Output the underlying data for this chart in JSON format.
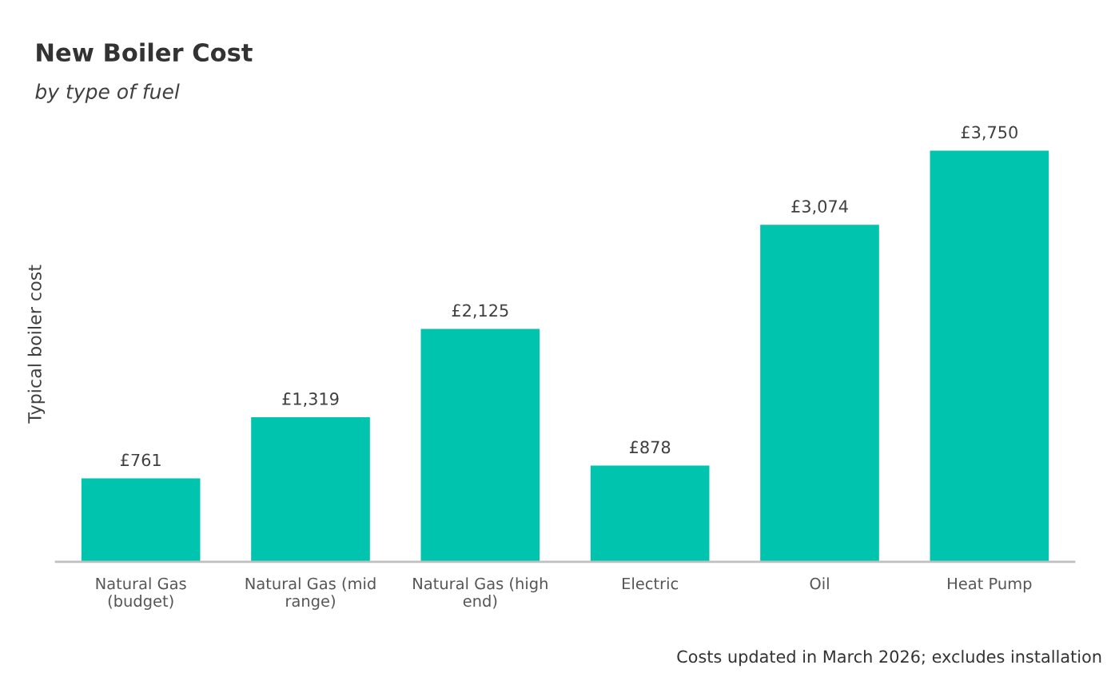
{
  "chart_data": {
    "type": "bar",
    "title": "New Boiler Cost",
    "subtitle": "by type of fuel",
    "ylabel": "Typical boiler cost",
    "categories": [
      "Natural Gas (budget)",
      "Natural Gas (mid range)",
      "Natural Gas (high end)",
      "Electric",
      "Oil",
      "Heat Pump"
    ],
    "values": [
      761,
      1319,
      2125,
      878,
      3074,
      3750
    ],
    "value_labels": [
      "£761",
      "£1,319",
      "£2,125",
      "£878",
      "£3,074",
      "£3,750"
    ],
    "color": "#00c4ae",
    "grid": false,
    "legend": false,
    "annotations": [
      "Costs updated in March 2026; excludes installation"
    ]
  }
}
